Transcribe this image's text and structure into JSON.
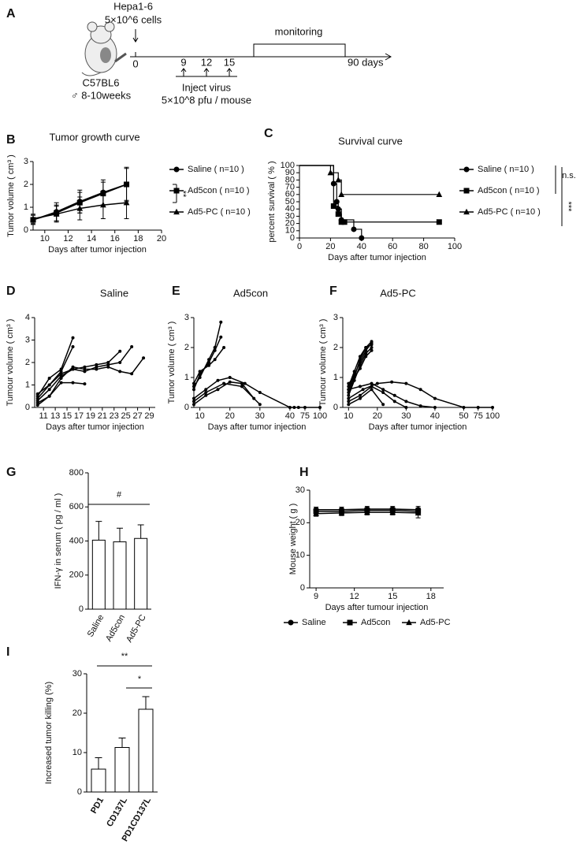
{
  "diagram": {
    "panel": "A",
    "cells": "Hepa1-6",
    "cell_dose": "5×10^6 cells",
    "timeline": {
      "start": "0",
      "injections": [
        "9",
        "12",
        "15"
      ],
      "end": "90 days",
      "window": "monitoring"
    },
    "injection": {
      "label": "Inject virus",
      "dose": "5×10^8 pfu / mouse"
    },
    "mouse": {
      "strain": "C57BL6",
      "sex_age": "♂ 8-10weeks"
    }
  },
  "chart_data": [
    {
      "panel": "B",
      "type": "line",
      "title": "Tumor growth curve",
      "x_label": "Days after tumor injection",
      "y_label": "Tumor volume ( cm³ )",
      "x": [
        9,
        11,
        13,
        15,
        17
      ],
      "xlim": [
        9,
        20
      ],
      "xticks": [
        10,
        12,
        14,
        16,
        18,
        20
      ],
      "ylim": [
        0,
        3
      ],
      "yticks": [
        0,
        1,
        2,
        3
      ],
      "legend": "right",
      "series": [
        {
          "name": "Saline ( n=10 )",
          "color": "#000000",
          "marker": "circle",
          "values": [
            0.45,
            0.8,
            1.25,
            1.65,
            2.0
          ],
          "errors": [
            0.2,
            0.4,
            0.5,
            0.55,
            0.75
          ]
        },
        {
          "name": "Ad5con ( n=10 )",
          "color": "#000000",
          "marker": "square",
          "values": [
            0.45,
            0.75,
            1.2,
            1.6,
            2.0
          ],
          "errors": [
            0.2,
            0.35,
            0.45,
            0.5,
            0.7
          ]
        },
        {
          "name": "Ad5-PC ( n=10 )",
          "color": "#000000",
          "marker": "triangle",
          "values": [
            0.5,
            0.7,
            0.95,
            1.1,
            1.2
          ],
          "errors": [
            0.2,
            0.35,
            0.5,
            0.6,
            0.7
          ]
        }
      ],
      "annotations": [
        "**"
      ]
    },
    {
      "panel": "C",
      "type": "step",
      "title": "Survival curve",
      "x_label": "Days after tumor injection",
      "y_label": "percent survival ( % )",
      "xlim": [
        0,
        100
      ],
      "xticks": [
        0,
        20,
        40,
        60,
        80,
        100
      ],
      "ylim": [
        0,
        100
      ],
      "yticks": [
        0,
        10,
        20,
        30,
        40,
        50,
        60,
        70,
        80,
        90,
        100
      ],
      "legend": "right",
      "series": [
        {
          "name": "Saline ( n=10 )",
          "color": "#000000",
          "marker": "circle",
          "x": [
            0,
            22,
            24,
            25,
            27,
            35,
            40
          ],
          "values": [
            100,
            75,
            50,
            40,
            25,
            12,
            0
          ]
        },
        {
          "name": "Ad5con ( n=10 )",
          "color": "#000000",
          "marker": "square",
          "x": [
            0,
            22,
            25,
            27,
            29,
            90
          ],
          "values": [
            100,
            44,
            33,
            22,
            22,
            22
          ]
        },
        {
          "name": "Ad5-PC ( n=10 )",
          "color": "#000000",
          "marker": "triangle",
          "x": [
            0,
            20,
            25,
            27,
            90
          ],
          "values": [
            100,
            90,
            80,
            60,
            60
          ]
        }
      ],
      "annotations": [
        "n.s.",
        "***"
      ]
    },
    {
      "panel": "D",
      "type": "line",
      "title": "Saline",
      "x_label": "Days after tumor injection",
      "y_label": "Tumour volume ( cm³ )",
      "xlim": [
        9.5,
        30
      ],
      "xticks": [
        11,
        13,
        15,
        17,
        19,
        21,
        23,
        25,
        27,
        29
      ],
      "ylim": [
        0,
        4
      ],
      "yticks": [
        0,
        1,
        2,
        3,
        4
      ],
      "color": "#000000",
      "marker": "circle",
      "series": [
        {
          "x": [
            10,
            12,
            14,
            16
          ],
          "values": [
            0.5,
            1.3,
            1.7,
            3.1
          ]
        },
        {
          "x": [
            10,
            12,
            14,
            16
          ],
          "values": [
            0.4,
            1.0,
            1.6,
            2.7
          ]
        },
        {
          "x": [
            10,
            12,
            14,
            16,
            18,
            20,
            22,
            24
          ],
          "values": [
            0.3,
            0.8,
            1.4,
            1.7,
            1.8,
            1.9,
            2.0,
            2.5
          ]
        },
        {
          "x": [
            10,
            12,
            14,
            16,
            18,
            20,
            22,
            24,
            26,
            28
          ],
          "values": [
            0.2,
            0.5,
            1.3,
            1.8,
            1.7,
            1.7,
            1.8,
            1.6,
            1.5,
            2.2
          ]
        },
        {
          "x": [
            10,
            12,
            14,
            16,
            18,
            20,
            22,
            24,
            26
          ],
          "values": [
            0.6,
            1.0,
            1.5,
            1.7,
            1.6,
            1.8,
            1.9,
            2.0,
            2.7
          ]
        },
        {
          "x": [
            10,
            12,
            14,
            16,
            18
          ],
          "values": [
            0.1,
            0.5,
            1.1,
            1.1,
            1.05
          ]
        }
      ]
    },
    {
      "panel": "E",
      "type": "line",
      "title": "Ad5con",
      "x_label": "Days after tumor injection",
      "y_label": "Tumor volume ( cm³ )",
      "xlim": [
        8,
        100
      ],
      "xticks": [
        10,
        20,
        30,
        40,
        75,
        100
      ],
      "x_break": true,
      "ylim": [
        0,
        3
      ],
      "yticks": [
        0,
        1,
        2,
        3
      ],
      "color": "#000000",
      "marker": "circle",
      "series": [
        {
          "x": [
            8,
            10,
            13,
            15,
            17
          ],
          "values": [
            0.7,
            1.0,
            1.6,
            2.0,
            2.85
          ]
        },
        {
          "x": [
            8,
            10,
            13,
            15,
            17
          ],
          "values": [
            0.6,
            1.1,
            1.5,
            1.9,
            2.35
          ]
        },
        {
          "x": [
            8,
            10,
            13,
            15,
            18
          ],
          "values": [
            0.8,
            1.2,
            1.4,
            1.6,
            2.0
          ]
        },
        {
          "x": [
            8,
            12,
            16,
            20,
            25,
            30,
            40,
            50,
            60,
            75,
            100
          ],
          "values": [
            0.3,
            0.6,
            0.9,
            1.0,
            0.8,
            0.5,
            0,
            0,
            0,
            0,
            0
          ]
        },
        {
          "x": [
            8,
            12,
            16,
            20,
            24,
            28
          ],
          "values": [
            0.1,
            0.4,
            0.6,
            0.85,
            0.8,
            0.3
          ]
        },
        {
          "x": [
            8,
            12,
            18,
            24,
            30
          ],
          "values": [
            0.2,
            0.5,
            0.8,
            0.7,
            0.1
          ]
        }
      ]
    },
    {
      "panel": "F",
      "type": "line",
      "title": "Ad5-PC",
      "x_label": "Days after tumor injection",
      "y_label": "Tumour volume ( cm³ )",
      "xlim": [
        8,
        100
      ],
      "xticks": [
        10,
        20,
        30,
        40,
        50,
        75,
        100
      ],
      "x_break": true,
      "ylim": [
        0,
        3
      ],
      "yticks": [
        0,
        1,
        2,
        3
      ],
      "color": "#000000",
      "marker": "circle",
      "series": [
        {
          "x": [
            10,
            12,
            14,
            16,
            18
          ],
          "values": [
            0.5,
            1.0,
            1.6,
            2.0,
            2.2
          ]
        },
        {
          "x": [
            10,
            12,
            14,
            16,
            18
          ],
          "values": [
            0.6,
            1.1,
            1.5,
            1.9,
            2.15
          ]
        },
        {
          "x": [
            10,
            12,
            14,
            16,
            18
          ],
          "values": [
            0.7,
            1.2,
            1.7,
            2.0,
            2.1
          ]
        },
        {
          "x": [
            10,
            12,
            14,
            16,
            18
          ],
          "values": [
            0.4,
            0.9,
            1.4,
            1.8,
            2.0
          ]
        },
        {
          "x": [
            10,
            12,
            14,
            16,
            18
          ],
          "values": [
            0.8,
            1.0,
            1.3,
            1.7,
            1.9
          ]
        },
        {
          "x": [
            10,
            15,
            20,
            25,
            30,
            35,
            40,
            50,
            75,
            100
          ],
          "values": [
            0.3,
            0.6,
            0.8,
            0.85,
            0.8,
            0.6,
            0.3,
            0,
            0,
            0
          ]
        },
        {
          "x": [
            10,
            14,
            18,
            22,
            26,
            30
          ],
          "values": [
            0.2,
            0.4,
            0.7,
            0.5,
            0.2,
            0
          ]
        },
        {
          "x": [
            10,
            14,
            18,
            22,
            26,
            30,
            35,
            40
          ],
          "values": [
            0.6,
            0.7,
            0.8,
            0.6,
            0.4,
            0.2,
            0.05,
            0
          ]
        },
        {
          "x": [
            10,
            14,
            18,
            22
          ],
          "values": [
            0.1,
            0.3,
            0.6,
            0.1
          ]
        }
      ]
    },
    {
      "panel": "G",
      "type": "bar",
      "y_label": "IFN-γ in serum ( pg / ml )",
      "categories": [
        "Saline",
        "Ad5con",
        "Ad5-PC"
      ],
      "values": [
        405,
        395,
        415
      ],
      "errors": [
        110,
        80,
        80
      ],
      "color": "#ffffff",
      "ylim": [
        0,
        800
      ],
      "yticks": [
        0,
        200,
        400,
        600,
        800
      ],
      "annotations": [
        "#"
      ]
    },
    {
      "panel": "H",
      "type": "line",
      "x_label": "Days after tumour injection",
      "y_label": "Mouse weight ( g )",
      "x": [
        9,
        11,
        13,
        15,
        17
      ],
      "xlim": [
        8.5,
        19
      ],
      "xticks": [
        9,
        12,
        15,
        18
      ],
      "ylim": [
        0,
        30
      ],
      "yticks": [
        0,
        10,
        20,
        30
      ],
      "legend": "bottom",
      "series": [
        {
          "name": "Saline",
          "color": "#000000",
          "marker": "circle",
          "values": [
            24,
            24,
            24.2,
            24.2,
            24
          ],
          "errors": [
            0.8,
            0.8,
            0.8,
            0.8,
            1
          ]
        },
        {
          "name": "Ad5con",
          "color": "#000000",
          "marker": "square",
          "values": [
            23.5,
            23.5,
            23.8,
            23.8,
            23.5
          ],
          "errors": [
            0.8,
            0.8,
            0.8,
            0.8,
            1
          ]
        },
        {
          "name": "Ad5-PC",
          "color": "#000000",
          "marker": "triangle",
          "values": [
            22.8,
            23,
            23.2,
            23.2,
            23
          ],
          "errors": [
            0.8,
            0.8,
            0.8,
            0.8,
            1.5
          ]
        }
      ]
    },
    {
      "panel": "I",
      "type": "bar",
      "y_label": "Increased  tumor killing (%)",
      "categories": [
        "PD1",
        "CD137L",
        "PD1CD137L"
      ],
      "values": [
        5.8,
        11.3,
        21.0
      ],
      "errors": [
        2.9,
        2.4,
        3.2
      ],
      "color": "#ffffff",
      "ylim": [
        0,
        30
      ],
      "yticks": [
        0,
        10,
        20,
        30
      ],
      "annotations": [
        "**",
        "*"
      ]
    }
  ]
}
